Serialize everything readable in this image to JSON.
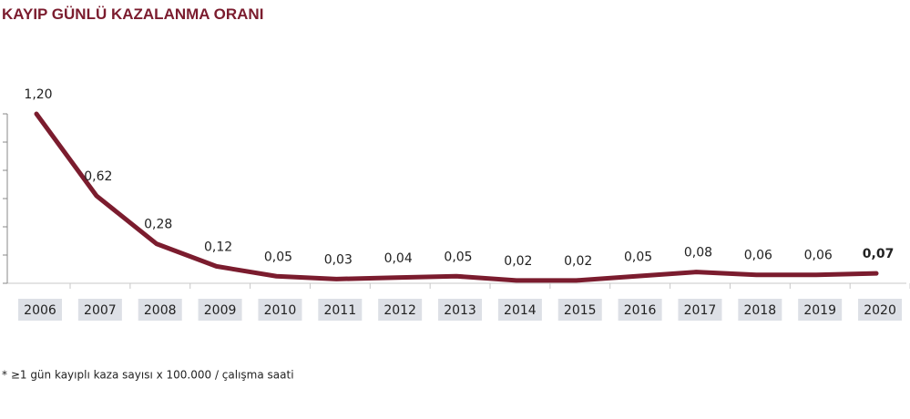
{
  "chart_data": {
    "type": "line",
    "title": "KAYIP GÜNLÜ KAZALANMA ORANI",
    "categories": [
      "2006",
      "2007",
      "2008",
      "2009",
      "2010",
      "2011",
      "2012",
      "2013",
      "2014",
      "2015",
      "2016",
      "2017",
      "2018",
      "2019",
      "2020"
    ],
    "values": [
      1.2,
      0.62,
      0.28,
      0.12,
      0.05,
      0.03,
      0.04,
      0.05,
      0.02,
      0.02,
      0.05,
      0.08,
      0.06,
      0.06,
      0.07
    ],
    "value_labels": [
      "1,20",
      "0,62",
      "0,28",
      "0,12",
      "0,05",
      "0,03",
      "0,04",
      "0,05",
      "0,02",
      "0,02",
      "0,05",
      "0,08",
      "0,06",
      "0,06",
      "0,07"
    ],
    "color": "#7b1c2e",
    "ylim": [
      0,
      1.2
    ],
    "yticks": [
      0,
      0.2,
      0.4,
      0.6,
      0.8,
      1.0,
      1.2
    ],
    "footnote": "* ≥1 gün kayıplı kaza sayısı x 100.000 / çalışma saati"
  }
}
